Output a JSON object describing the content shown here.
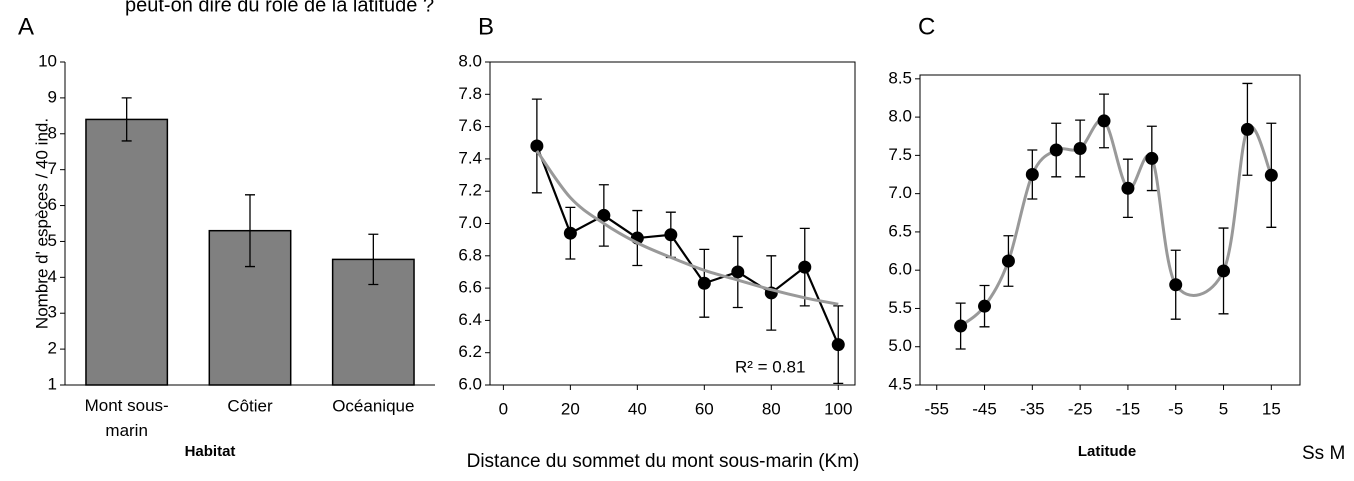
{
  "header": "peut-on dire du rôle de la latitude ?",
  "side_text": "Ss M",
  "chart_data": [
    {
      "type": "bar",
      "panel": "A",
      "ylabel": "Nombre d'  espèces / 40 ind.",
      "xlabel": "Habitat",
      "categories": [
        "Mont sous-marin",
        "Côtier",
        "Océanique"
      ],
      "values": [
        8.4,
        5.3,
        4.5
      ],
      "errors": [
        0.6,
        1.0,
        0.7
      ],
      "color": "#808080",
      "ylim": [
        1,
        10
      ],
      "yticks": [
        1,
        2,
        3,
        4,
        5,
        6,
        7,
        8,
        9,
        10
      ]
    },
    {
      "type": "line",
      "panel": "B",
      "xlabel": "Distance du sommet du mont sous-marin (Km)",
      "annotation": "R² = 0.81",
      "x": [
        10,
        20,
        30,
        40,
        50,
        60,
        70,
        80,
        90,
        100
      ],
      "series": [
        {
          "color": "#000000",
          "markers": true,
          "values": [
            7.48,
            6.94,
            7.05,
            6.91,
            6.93,
            6.63,
            6.7,
            6.57,
            6.73,
            6.25
          ],
          "errors": [
            0.29,
            0.16,
            0.19,
            0.17,
            0.14,
            0.21,
            0.22,
            0.23,
            0.24,
            0.24
          ]
        },
        {
          "color": "#999999",
          "smooth": true,
          "values": [
            7.45,
            7.16,
            7.0,
            6.88,
            6.79,
            6.71,
            6.65,
            6.59,
            6.54,
            6.5
          ]
        }
      ],
      "xlim": [
        -4,
        105
      ],
      "xticks": [
        0,
        20,
        40,
        60,
        80,
        100
      ],
      "ylim": [
        6,
        8
      ],
      "yticks": [
        {
          "value": 6,
          "label": "6.0"
        },
        6.2,
        6.4,
        6.6,
        6.8,
        {
          "value": 7,
          "label": "7.0"
        },
        7.2,
        7.4,
        7.6,
        7.8,
        {
          "value": 8,
          "label": "8.0"
        }
      ]
    },
    {
      "type": "line",
      "panel": "C",
      "xlabel": "Latitude",
      "x": [
        -50,
        -45,
        -40,
        -35,
        -30,
        -25,
        -20,
        -15,
        -10,
        -5,
        5,
        10,
        15
      ],
      "series": [
        {
          "color": "#999999",
          "smooth": true,
          "values": [
            5.27,
            5.53,
            6.12,
            7.25,
            7.57,
            7.59,
            7.95,
            7.07,
            7.46,
            5.81,
            5.99,
            7.84,
            7.24
          ]
        },
        {
          "color": "#000000",
          "markers": true,
          "noline": true,
          "values": [
            5.27,
            5.53,
            6.12,
            7.25,
            7.57,
            7.59,
            7.95,
            7.07,
            7.46,
            5.81,
            5.99,
            7.84,
            7.24
          ],
          "errors": [
            0.3,
            0.27,
            0.33,
            0.32,
            0.35,
            0.37,
            0.35,
            0.38,
            0.42,
            0.45,
            0.56,
            0.6,
            0.68
          ]
        }
      ],
      "xlim": [
        -58.5,
        21
      ],
      "xticks": [
        -55,
        -45,
        -35,
        -25,
        -15,
        -5,
        5,
        15
      ],
      "ylim": [
        4.5,
        8.55
      ],
      "yticks": [
        4.5,
        {
          "value": 5,
          "label": "5.0"
        },
        5.5,
        {
          "value": 6,
          "label": "6.0"
        },
        6.5,
        {
          "value": 7,
          "label": "7.0"
        },
        7.5,
        {
          "value": 8,
          "label": "8.0"
        },
        8.5
      ]
    }
  ]
}
